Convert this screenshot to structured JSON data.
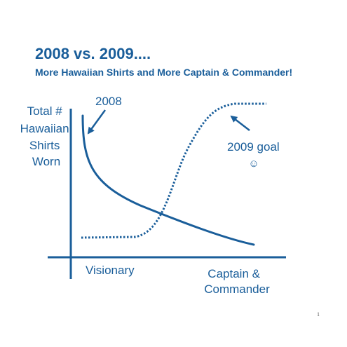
{
  "colors": {
    "primary": "#1a5e9a"
  },
  "slide": {
    "title": "2008 vs. 2009....",
    "subtitle": "More Hawaiian Shirts and More Captain & Commander!",
    "page_number": "1"
  },
  "diagram": {
    "y_axis_label_lines": [
      "Total #",
      "Hawaiian",
      "Shirts",
      "Worn"
    ],
    "x_axis_left_label": "Visionary",
    "x_axis_right_label_lines": [
      "Captain &",
      "Commander"
    ],
    "curve_2008_label": "2008",
    "curve_2009_label": "2009 goal",
    "smiley_icon": "☺"
  }
}
